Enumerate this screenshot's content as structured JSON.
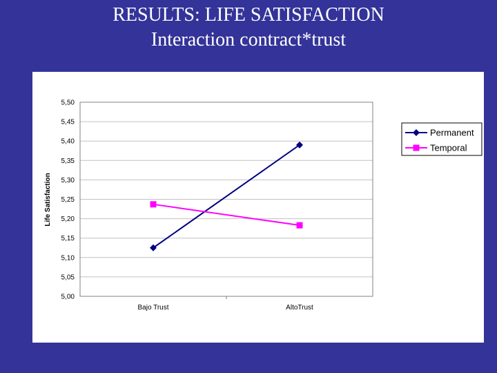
{
  "slide": {
    "title_line1": "RESULTS: LIFE SATISFACTION",
    "title_line2": "Interaction contract*trust"
  },
  "chart_data": {
    "type": "line",
    "title": "",
    "xlabel": "",
    "ylabel": "Life Satisfaction",
    "categories": [
      "Bajo Trust",
      "AltoTrust"
    ],
    "ylim": [
      5.0,
      5.5
    ],
    "yticks": [
      "5,50",
      "5,45",
      "5,40",
      "5,35",
      "5,30",
      "5,25",
      "5,20",
      "5,15",
      "5,10",
      "5,05",
      "5,00"
    ],
    "grid": true,
    "legend_position": "right",
    "series": [
      {
        "name": "Permanent",
        "values": [
          5.125,
          5.39
        ],
        "color": "#000080",
        "marker": "diamond"
      },
      {
        "name": "Temporal",
        "values": [
          5.237,
          5.183
        ],
        "color": "#FF00FF",
        "marker": "square"
      }
    ]
  }
}
